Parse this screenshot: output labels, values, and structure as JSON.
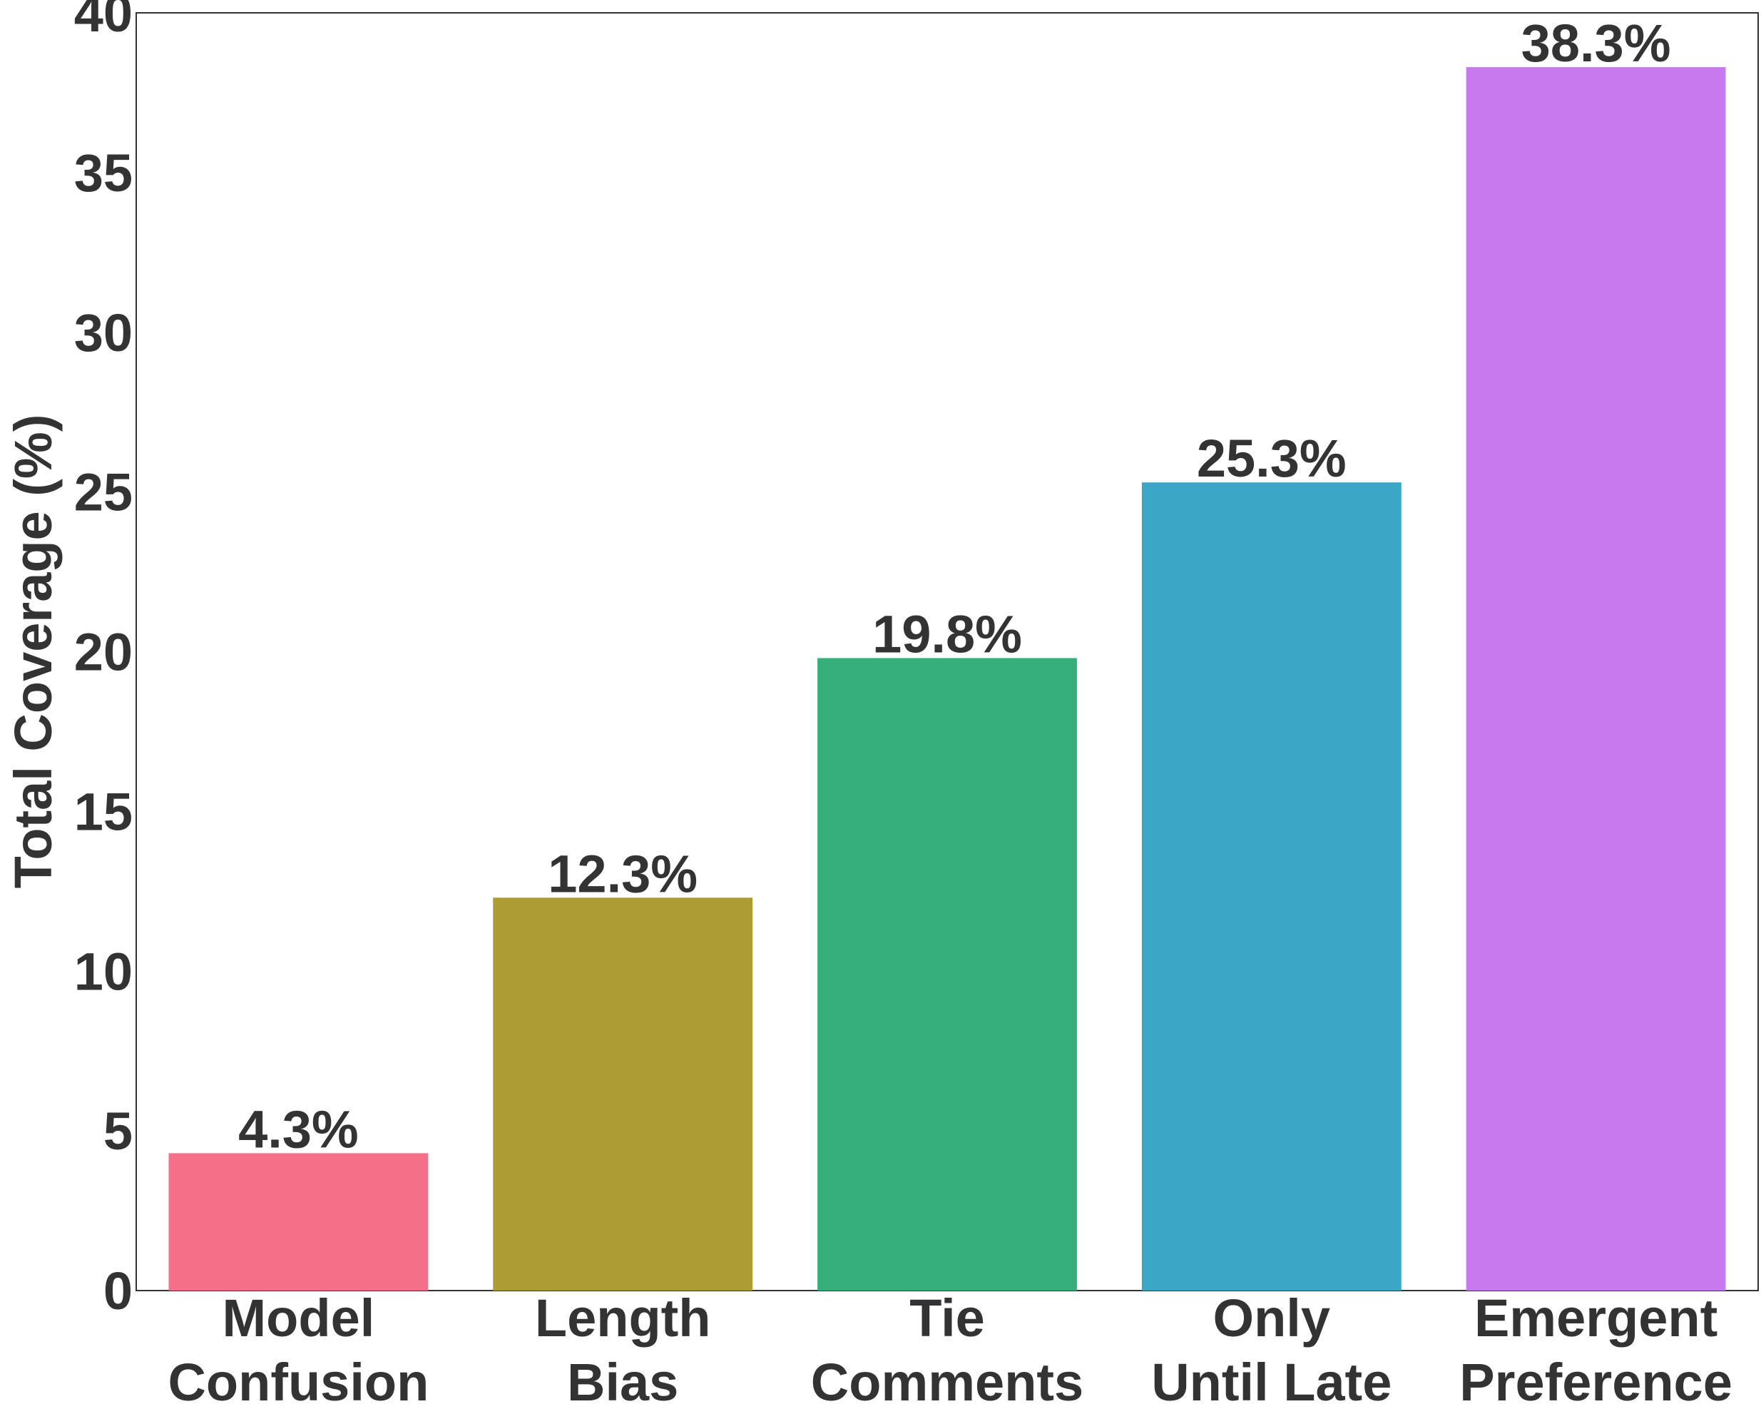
{
  "chart_data": {
    "type": "bar",
    "categories": [
      [
        "Model",
        "Confusion"
      ],
      [
        "Length",
        "Bias"
      ],
      [
        "Tie",
        "Comments"
      ],
      [
        "Only",
        "Until Late"
      ],
      [
        "Emergent",
        "Preference"
      ]
    ],
    "values": [
      4.3,
      12.3,
      19.8,
      25.3,
      38.3
    ],
    "value_labels": [
      "4.3%",
      "12.3%",
      "19.8%",
      "25.3%",
      "38.3%"
    ],
    "colors": [
      "#f47088",
      "#ac9c33",
      "#35b07a",
      "#39a7c5",
      "#c979f0"
    ],
    "ylabel": "Total Coverage (%)",
    "ylim": [
      0,
      40
    ],
    "yticks": [
      0,
      5,
      10,
      15,
      20,
      25,
      30,
      35,
      40
    ],
    "grid": false,
    "legend": "none"
  }
}
